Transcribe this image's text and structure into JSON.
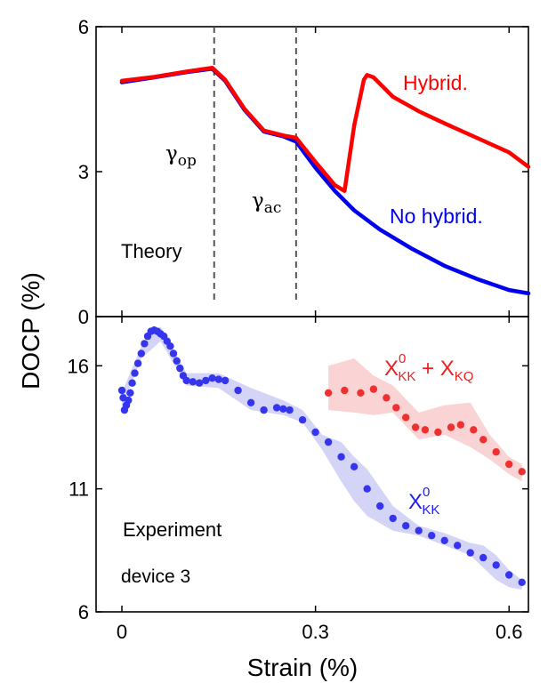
{
  "chart_data": [
    {
      "type": "line",
      "panel": "top",
      "annotation": "Theory",
      "ylim": [
        0,
        6
      ],
      "xlim": [
        -0.04,
        0.63
      ],
      "yticks": [
        0,
        3,
        6
      ],
      "ytick_labels": [
        "0",
        "3",
        "6"
      ],
      "vlines": [
        {
          "x": 0.143,
          "label_base": "γ",
          "label_sub": "op"
        },
        {
          "x": 0.27,
          "label_base": "γ",
          "label_sub": "ac"
        }
      ],
      "series": [
        {
          "name": "Hybrid.",
          "color": "#ff0000",
          "x": [
            0.0,
            0.05,
            0.1,
            0.14,
            0.16,
            0.19,
            0.22,
            0.25,
            0.27,
            0.3,
            0.33,
            0.345,
            0.36,
            0.375,
            0.38,
            0.39,
            0.42,
            0.46,
            0.5,
            0.55,
            0.6,
            0.63
          ],
          "y": [
            4.88,
            4.96,
            5.07,
            5.15,
            4.9,
            4.3,
            3.85,
            3.75,
            3.7,
            3.2,
            2.72,
            2.6,
            3.95,
            4.9,
            5.0,
            4.95,
            4.55,
            4.25,
            4.0,
            3.7,
            3.4,
            3.1
          ]
        },
        {
          "name": "No hybrid.",
          "color": "#0000ee",
          "x": [
            0.0,
            0.05,
            0.1,
            0.14,
            0.16,
            0.19,
            0.22,
            0.25,
            0.27,
            0.3,
            0.33,
            0.36,
            0.4,
            0.45,
            0.5,
            0.55,
            0.6,
            0.63
          ],
          "y": [
            4.85,
            4.95,
            5.06,
            5.13,
            4.88,
            4.28,
            3.83,
            3.73,
            3.62,
            3.08,
            2.6,
            2.2,
            1.8,
            1.4,
            1.05,
            0.78,
            0.55,
            0.48
          ]
        }
      ]
    },
    {
      "type": "scatter",
      "panel": "bottom",
      "annotation_line1": "Experiment",
      "annotation_line2": "device 3",
      "ylim": [
        6,
        18
      ],
      "xlim": [
        -0.04,
        0.63
      ],
      "yticks": [
        6,
        11,
        16
      ],
      "ytick_labels": [
        "6",
        "11",
        "16"
      ],
      "series": [
        {
          "name_base": "X",
          "name_sup": "0",
          "name_sub": "KK",
          "color": "#3535ee",
          "band_color": "#c9c9f4",
          "x": [
            0.0,
            0.002,
            0.004,
            0.007,
            0.01,
            0.013,
            0.016,
            0.02,
            0.025,
            0.03,
            0.035,
            0.04,
            0.045,
            0.05,
            0.055,
            0.06,
            0.065,
            0.07,
            0.075,
            0.08,
            0.085,
            0.09,
            0.095,
            0.1,
            0.11,
            0.12,
            0.13,
            0.14,
            0.15,
            0.16,
            0.18,
            0.2,
            0.22,
            0.24,
            0.25,
            0.26,
            0.28,
            0.3,
            0.32,
            0.34,
            0.36,
            0.38,
            0.4,
            0.42,
            0.44,
            0.46,
            0.48,
            0.5,
            0.52,
            0.54,
            0.56,
            0.58,
            0.6,
            0.62
          ],
          "y": [
            15.0,
            14.7,
            14.2,
            14.4,
            14.6,
            14.9,
            15.3,
            15.7,
            16.1,
            16.5,
            16.9,
            17.2,
            17.4,
            17.45,
            17.4,
            17.3,
            17.2,
            17.0,
            16.8,
            16.5,
            16.2,
            15.9,
            15.6,
            15.4,
            15.35,
            15.3,
            15.4,
            15.5,
            15.45,
            15.4,
            15.0,
            14.5,
            14.2,
            14.3,
            14.25,
            14.2,
            13.8,
            13.3,
            12.9,
            12.3,
            11.9,
            11.0,
            10.3,
            9.8,
            9.5,
            9.3,
            9.1,
            8.9,
            8.7,
            8.4,
            8.2,
            7.9,
            7.5,
            7.2
          ],
          "band_x": [
            0.0,
            0.03,
            0.06,
            0.1,
            0.15,
            0.2,
            0.25,
            0.28,
            0.31,
            0.34,
            0.36,
            0.38,
            0.42,
            0.46,
            0.5,
            0.54,
            0.56,
            0.58,
            0.6,
            0.62
          ],
          "band_low": [
            14.3,
            16.3,
            17.0,
            15.2,
            15.1,
            14.2,
            14.0,
            13.7,
            12.6,
            11.3,
            10.5,
            9.9,
            9.3,
            9.1,
            8.7,
            8.3,
            7.8,
            7.3,
            7.0,
            6.9
          ],
          "band_high": [
            14.9,
            16.8,
            17.6,
            15.7,
            15.7,
            15.1,
            14.6,
            14.2,
            13.2,
            12.9,
            12.3,
            11.8,
            10.3,
            9.5,
            9.2,
            8.8,
            8.7,
            8.3,
            7.7,
            7.3
          ]
        },
        {
          "name_base": "X",
          "name_sup": "0",
          "name_sub": "KK",
          "name_suffix": " + X",
          "name_sub2": "KQ",
          "color": "#ee3030",
          "band_color": "#f9c9c9",
          "x": [
            0.32,
            0.345,
            0.37,
            0.39,
            0.41,
            0.425,
            0.44,
            0.455,
            0.47,
            0.49,
            0.51,
            0.525,
            0.545,
            0.56,
            0.58,
            0.6,
            0.62
          ],
          "y": [
            14.9,
            15.0,
            14.9,
            15.05,
            14.7,
            14.3,
            13.9,
            13.5,
            13.4,
            13.3,
            13.5,
            13.6,
            13.4,
            13.0,
            12.5,
            12.0,
            11.7
          ],
          "band_x": [
            0.32,
            0.36,
            0.39,
            0.42,
            0.46,
            0.5,
            0.54,
            0.57,
            0.6,
            0.62
          ],
          "band_low": [
            14.2,
            14.1,
            14.0,
            14.1,
            13.0,
            13.2,
            12.7,
            12.2,
            11.6,
            11.3
          ],
          "band_high": [
            16.0,
            16.3,
            15.6,
            15.2,
            14.1,
            14.4,
            14.5,
            13.2,
            12.3,
            12.0
          ]
        }
      ]
    }
  ],
  "axes": {
    "ylabel": "DOCP (%)",
    "xlabel": "Strain (%)",
    "xticks": [
      0,
      0.3,
      0.6
    ],
    "xtick_labels": [
      "0",
      "0.3",
      "0.6"
    ]
  }
}
